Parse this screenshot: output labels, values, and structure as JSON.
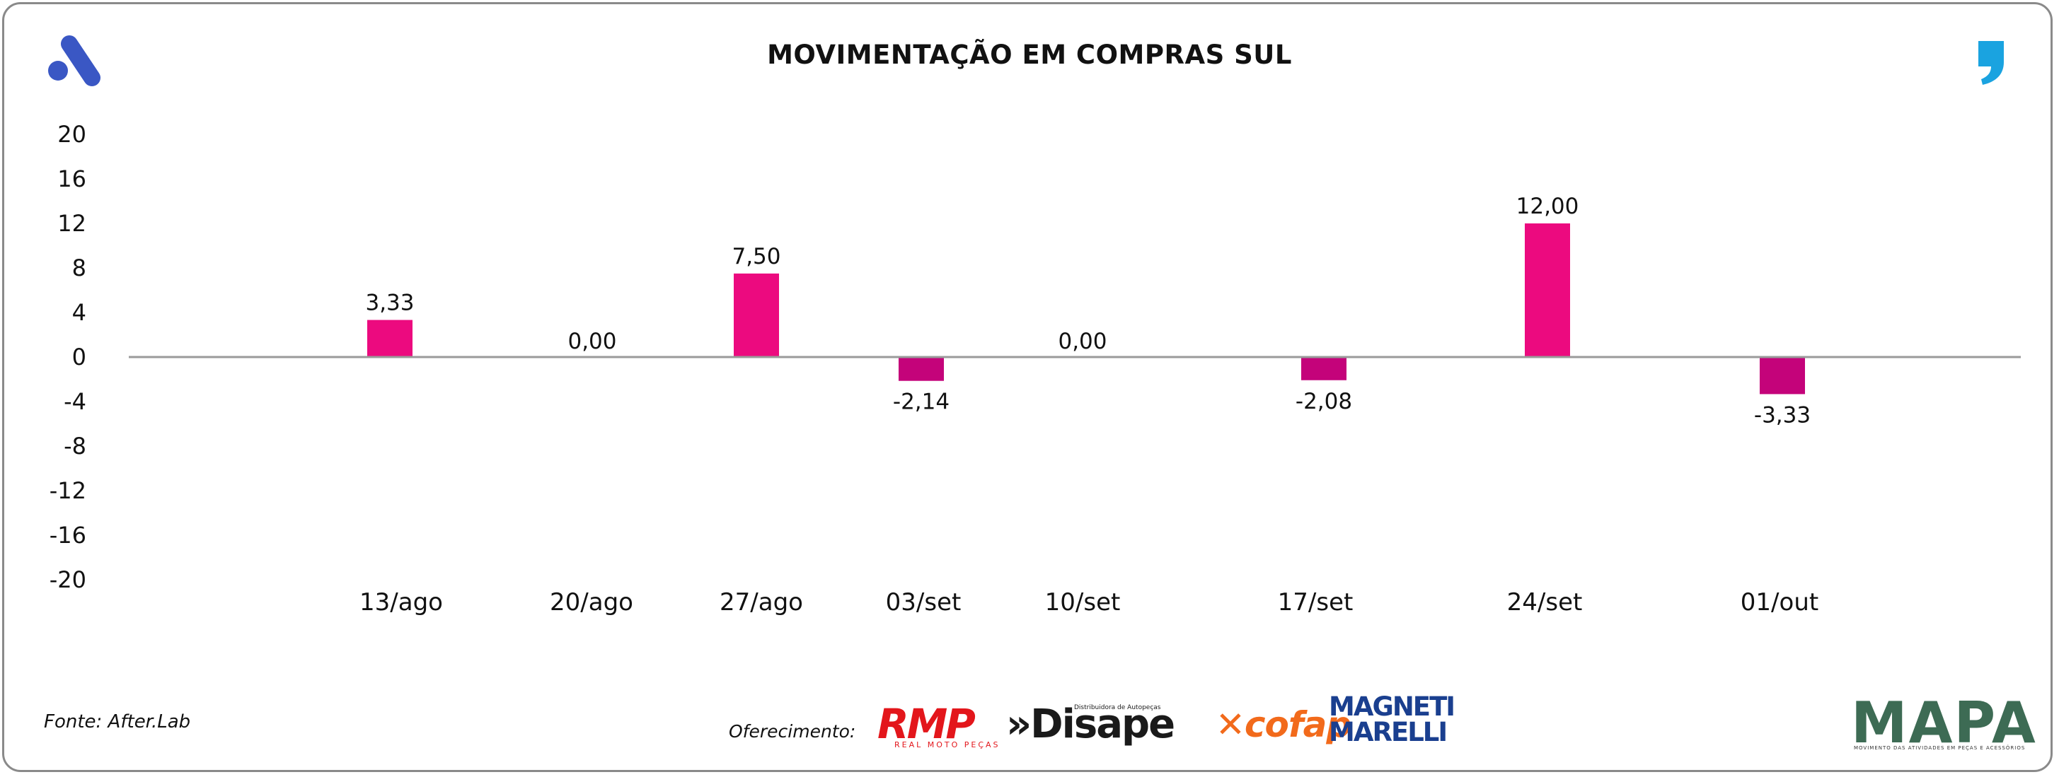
{
  "title": "MOVIMENTAÇÃO EM COMPRAS SUL",
  "source": "Fonte: After.Lab",
  "sponsor_label": "Oferecimento:",
  "logos": {
    "left_brand": "brand-a-logo-icon",
    "right_brand": "comma-quote-logo-icon",
    "rmp": "RMP",
    "rmp_sub": "REAL MOTO PEÇAS",
    "disape": "»Disape",
    "disape_sub": "Distribuidora de Autopeças",
    "cofap": "cofap",
    "magneti_line1": "MAGNETI",
    "magneti_line2": "MARELLI",
    "mapa": "MAPA",
    "mapa_sub": "MOVIMENTO DAS ATIVIDADES EM PEÇAS E ACESSÓRIOS"
  },
  "colors": {
    "positive": "#ec0a7f",
    "negative": "#c4037a",
    "axis": "#9a9a9a",
    "brand_blue": "#3a57c4",
    "brand_cyan": "#1aa3e0"
  },
  "chart_data": {
    "type": "bar",
    "title": "MOVIMENTAÇÃO EM COMPRAS SUL",
    "categories": [
      "13/ago",
      "20/ago",
      "27/ago",
      "03/set",
      "10/set",
      "17/set",
      "24/set",
      "01/out"
    ],
    "values": [
      3.33,
      0.0,
      7.5,
      -2.14,
      0.0,
      -2.08,
      12.0,
      -3.33
    ],
    "data_labels": [
      "3,33",
      "0,00",
      "7,50",
      "-2,14",
      "0,00",
      "-2,08",
      "12,00",
      "-3,33"
    ],
    "y_ticks": [
      20,
      16,
      12,
      8,
      4,
      0,
      -4,
      -8,
      -12,
      -16,
      -20
    ],
    "y_tick_labels": [
      "20",
      "16",
      "12",
      "8",
      "4",
      "0",
      "-4",
      "-8",
      "-12",
      "-16",
      "-20"
    ],
    "ylim": [
      -20,
      20
    ],
    "xlabel": "",
    "ylabel": "",
    "grid": false,
    "legend": "none"
  }
}
